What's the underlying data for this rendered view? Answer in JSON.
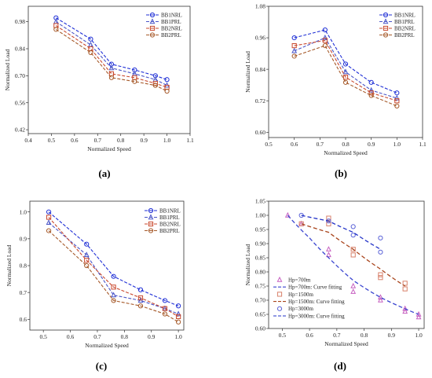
{
  "chart_data": [
    {
      "type": "line",
      "panel_label": "(a)",
      "xlabel": "Normalized Speed",
      "ylabel": "Normalized Load",
      "xlim": [
        0.4,
        1.1
      ],
      "ylim": [
        0.4,
        1.06
      ],
      "xticks": [
        "0.4",
        "0.5",
        "0.6",
        "0.7",
        "0.8",
        "0.9",
        "1.0",
        "1.1"
      ],
      "yticks": [
        "0.42",
        "0.56",
        "0.70",
        "0.84",
        "0.98"
      ],
      "legend_position": "top-right",
      "x": [
        0.52,
        0.67,
        0.76,
        0.86,
        0.95,
        1.0
      ],
      "series": [
        {
          "name": "BB1NRL",
          "values": [
            1.0,
            0.89,
            0.76,
            0.73,
            0.7,
            0.68
          ],
          "color": "#1f2fd6",
          "marker": "circle"
        },
        {
          "name": "BB1PRL",
          "values": [
            0.98,
            0.86,
            0.74,
            0.71,
            0.68,
            0.65
          ],
          "color": "#4a55c8",
          "marker": "triangle"
        },
        {
          "name": "BB2NRL",
          "values": [
            0.96,
            0.84,
            0.71,
            0.69,
            0.66,
            0.64
          ],
          "color": "#c9492e",
          "marker": "square"
        },
        {
          "name": "BB2PRL",
          "values": [
            0.94,
            0.82,
            0.69,
            0.67,
            0.65,
            0.62
          ],
          "color": "#a65a2a",
          "marker": "circle"
        }
      ]
    },
    {
      "type": "line",
      "panel_label": "(b)",
      "xlabel": "Normalized Speed",
      "ylabel": "Normalized Load",
      "xlim": [
        0.5,
        1.1
      ],
      "ylim": [
        0.58,
        1.08
      ],
      "xticks": [
        "0.5",
        "0.6",
        "0.7",
        "0.8",
        "0.9",
        "1.0",
        "1.1"
      ],
      "yticks": [
        "0.60",
        "0.72",
        "0.84",
        "0.96",
        "1.08"
      ],
      "legend_position": "top-right",
      "x": [
        0.6,
        0.72,
        0.8,
        0.9,
        1.0
      ],
      "series": [
        {
          "name": "BB1NRL",
          "values": [
            0.96,
            0.99,
            0.86,
            0.79,
            0.75
          ],
          "color": "#1f2fd6",
          "marker": "circle"
        },
        {
          "name": "BB1PRL",
          "values": [
            0.91,
            0.96,
            0.83,
            0.76,
            0.73
          ],
          "color": "#4a55c8",
          "marker": "triangle"
        },
        {
          "name": "BB2NRL",
          "values": [
            0.93,
            0.95,
            0.81,
            0.75,
            0.72
          ],
          "color": "#c9492e",
          "marker": "square"
        },
        {
          "name": "BB2PRL",
          "values": [
            0.89,
            0.93,
            0.79,
            0.74,
            0.7
          ],
          "color": "#a65a2a",
          "marker": "circle"
        }
      ]
    },
    {
      "type": "line",
      "panel_label": "(c)",
      "xlabel": "Normalized Speed",
      "ylabel": "Normalized Load",
      "xlim": [
        0.45,
        1.02
      ],
      "ylim": [
        0.56,
        1.04
      ],
      "xticks": [
        "0.5",
        "0.6",
        "0.7",
        "0.8",
        "0.9",
        "1.0"
      ],
      "yticks": [
        "0.6",
        "0.7",
        "0.8",
        "0.9",
        "1.0"
      ],
      "legend_position": "top-right",
      "x": [
        0.52,
        0.66,
        0.76,
        0.86,
        0.95,
        1.0
      ],
      "series": [
        {
          "name": "BB1NRL",
          "values": [
            1.0,
            0.88,
            0.76,
            0.71,
            0.67,
            0.65
          ],
          "color": "#1f2fd6",
          "marker": "circle"
        },
        {
          "name": "BB1PRL",
          "values": [
            0.96,
            0.84,
            0.69,
            0.67,
            0.64,
            0.62
          ],
          "color": "#4a55c8",
          "marker": "triangle"
        },
        {
          "name": "BB2NRL",
          "values": [
            0.98,
            0.82,
            0.72,
            0.68,
            0.64,
            0.61
          ],
          "color": "#c9492e",
          "marker": "square"
        },
        {
          "name": "BB2PRL",
          "values": [
            0.93,
            0.8,
            0.67,
            0.65,
            0.62,
            0.59
          ],
          "color": "#a65a2a",
          "marker": "circle"
        }
      ]
    },
    {
      "type": "scatter",
      "panel_label": "(d)",
      "xlabel": "Normalized Speed",
      "ylabel": "Normalized Load",
      "xlim": [
        0.45,
        1.02
      ],
      "ylim": [
        0.6,
        1.05
      ],
      "xticks": [
        "0.5",
        "0.6",
        "0.7",
        "0.8",
        "0.9",
        "1.0"
      ],
      "yticks": [
        "0.60",
        "0.65",
        "0.70",
        "0.75",
        "0.80",
        "0.85",
        "0.90",
        "0.95",
        "1.00",
        "1.05"
      ],
      "legend_position": "bottom-left",
      "series": [
        {
          "name": "Hp=700m",
          "kind": "points",
          "marker": "triangle",
          "color": "#c65fc0",
          "points": [
            [
              0.52,
              1.0
            ],
            [
              0.57,
              0.97
            ],
            [
              0.67,
              0.88
            ],
            [
              0.67,
              0.86
            ],
            [
              0.76,
              0.75
            ],
            [
              0.76,
              0.73
            ],
            [
              0.86,
              0.71
            ],
            [
              0.86,
              0.7
            ],
            [
              0.95,
              0.67
            ],
            [
              0.95,
              0.66
            ],
            [
              1.0,
              0.65
            ],
            [
              1.0,
              0.64
            ]
          ]
        },
        {
          "name": "Hp=700m: Curve fitting",
          "kind": "curve",
          "color": "#3a45d0",
          "points": [
            [
              0.52,
              1.0
            ],
            [
              0.6,
              0.92
            ],
            [
              0.67,
              0.85
            ],
            [
              0.76,
              0.77
            ],
            [
              0.86,
              0.71
            ],
            [
              0.95,
              0.67
            ],
            [
              1.0,
              0.65
            ]
          ]
        },
        {
          "name": "Hp=1500m",
          "kind": "points",
          "marker": "square",
          "color": "#d8806a",
          "points": [
            [
              0.57,
              0.97
            ],
            [
              0.67,
              0.99
            ],
            [
              0.67,
              0.97
            ],
            [
              0.76,
              0.88
            ],
            [
              0.76,
              0.86
            ],
            [
              0.86,
              0.79
            ],
            [
              0.86,
              0.78
            ],
            [
              0.95,
              0.76
            ],
            [
              0.95,
              0.74
            ]
          ]
        },
        {
          "name": "Hp=1500m: Curve fitting",
          "kind": "curve",
          "color": "#a8441c",
          "points": [
            [
              0.57,
              0.97
            ],
            [
              0.67,
              0.94
            ],
            [
              0.76,
              0.88
            ],
            [
              0.86,
              0.81
            ],
            [
              0.95,
              0.75
            ]
          ]
        },
        {
          "name": "Hp=3000m",
          "kind": "points",
          "marker": "circle",
          "color": "#5b63d8",
          "points": [
            [
              0.57,
              1.0
            ],
            [
              0.67,
              0.98
            ],
            [
              0.76,
              0.96
            ],
            [
              0.76,
              0.93
            ],
            [
              0.86,
              0.92
            ],
            [
              0.86,
              0.87
            ]
          ]
        },
        {
          "name": "Hp=3000m: Curve fitting",
          "kind": "curve",
          "color": "#2333c8",
          "points": [
            [
              0.57,
              1.0
            ],
            [
              0.67,
              0.98
            ],
            [
              0.76,
              0.94
            ],
            [
              0.86,
              0.88
            ]
          ]
        }
      ]
    }
  ]
}
